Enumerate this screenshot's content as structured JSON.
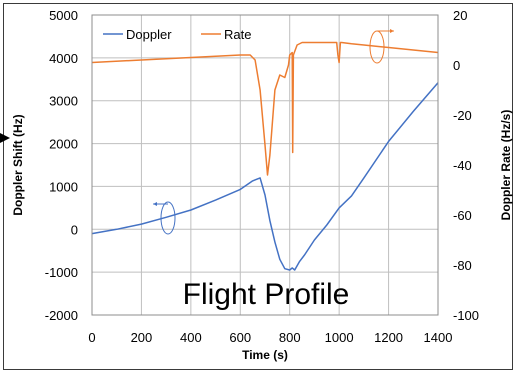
{
  "chart_data": {
    "type": "line",
    "title": "",
    "xlabel": "Time (s)",
    "ylabel": "Doppler Shift (Hz)",
    "y2label": "Doppler Rate (Hz/s)",
    "annotation": "Flight Profile",
    "xlim": [
      0,
      1400
    ],
    "ylim": [
      -2000,
      5000
    ],
    "y2lim": [
      -100,
      20
    ],
    "xticks": [
      "0",
      "200",
      "400",
      "600",
      "800",
      "1000",
      "1200",
      "1400"
    ],
    "yticks": [
      "-2000",
      "-1000",
      "0",
      "1000",
      "2000",
      "3000",
      "4000",
      "5000"
    ],
    "y2ticks": [
      "-100",
      "-80",
      "-60",
      "-40",
      "-20",
      "0",
      "20"
    ],
    "grid": true,
    "legend_position": "top-left",
    "series": [
      {
        "name": "Doppler",
        "axis": "left",
        "color": "#4472C4",
        "x": [
          0,
          100,
          200,
          300,
          400,
          500,
          600,
          650,
          680,
          700,
          720,
          740,
          760,
          780,
          800,
          810,
          820,
          840,
          860,
          900,
          950,
          1000,
          1050,
          1100,
          1200,
          1300,
          1400
        ],
        "y": [
          -100,
          0,
          120,
          280,
          450,
          680,
          930,
          1130,
          1200,
          800,
          200,
          -300,
          -700,
          -920,
          -950,
          -900,
          -950,
          -750,
          -600,
          -250,
          100,
          500,
          780,
          1200,
          2050,
          2750,
          3420
        ]
      },
      {
        "name": "Rate",
        "axis": "right",
        "color": "#ED7D31",
        "x": [
          0,
          200,
          400,
          600,
          640,
          660,
          680,
          700,
          710,
          720,
          740,
          760,
          780,
          795,
          800,
          810,
          812,
          815,
          830,
          850,
          900,
          990,
          995,
          1000,
          1005,
          1010,
          1050,
          1100,
          1200,
          1300,
          1400
        ],
        "y": [
          1,
          2,
          3,
          4,
          4,
          2,
          -10,
          -32,
          -44,
          -36,
          -10,
          -4,
          -5,
          0,
          4,
          5,
          -35,
          4,
          8,
          9,
          9,
          9,
          4,
          1,
          9,
          9,
          8.5,
          8,
          7,
          6,
          5
        ]
      }
    ]
  }
}
